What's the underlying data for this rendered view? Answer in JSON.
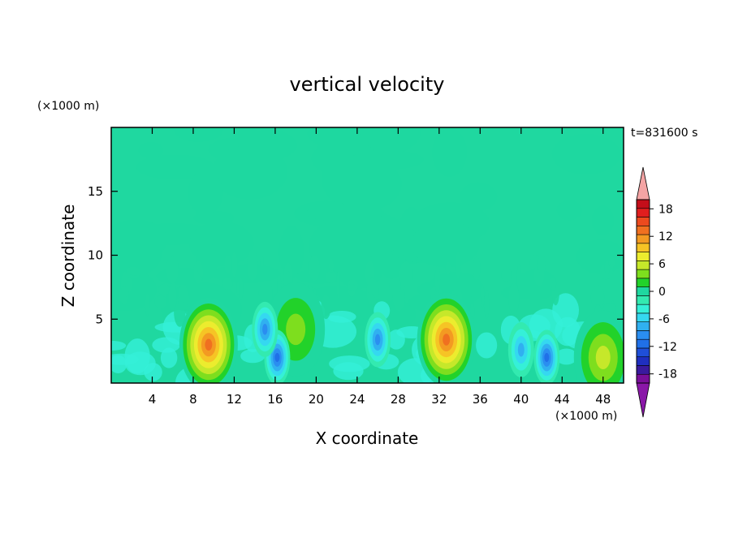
{
  "chart_data": {
    "type": "heatmap",
    "title": "vertical velocity",
    "xlabel": "X coordinate",
    "ylabel": "Z coordinate",
    "x_unit": "(×1000 m)",
    "y_unit": "(×1000 m)",
    "time_label": "t=831600 s",
    "xlim": [
      0,
      50
    ],
    "ylim": [
      0,
      20
    ],
    "x_ticks": [
      4,
      8,
      12,
      16,
      20,
      24,
      28,
      32,
      36,
      40,
      44,
      48
    ],
    "y_ticks": [
      5,
      10,
      15
    ],
    "colorbar": {
      "levels": [
        -20,
        -18,
        -16,
        -14,
        -12,
        -10,
        -8,
        -6,
        -4,
        -2,
        0,
        2,
        4,
        6,
        8,
        10,
        12,
        14,
        16,
        18,
        20
      ],
      "tick_labels": [
        18,
        12,
        6,
        0,
        -6,
        -12,
        -18
      ],
      "colors": [
        "#7a0f9a",
        "#3a1a9e",
        "#1f2fc0",
        "#1f4fd8",
        "#2070e8",
        "#2a8ef0",
        "#30b0f0",
        "#35d8f0",
        "#35f0d8",
        "#33eab0",
        "#1fd8a0",
        "#22d22a",
        "#7ede1e",
        "#c6e82a",
        "#ecec2e",
        "#f6c425",
        "#f39a22",
        "#f07020",
        "#ec4a1e",
        "#e01e1e",
        "#c40e1a"
      ],
      "under_color": "#8a17a8",
      "over_color": "#f4a4a4"
    },
    "features": [
      {
        "x": 9.5,
        "z": 3.0,
        "value": 16,
        "sign": "updraft"
      },
      {
        "x": 32.7,
        "z": 3.4,
        "value": 16,
        "sign": "updraft"
      },
      {
        "x": 48.0,
        "z": 2.0,
        "value": 8,
        "sign": "updraft"
      },
      {
        "x": 18.0,
        "z": 4.2,
        "value": 6,
        "sign": "updraft"
      },
      {
        "x": 16.2,
        "z": 2.0,
        "value": -12,
        "sign": "downdraft"
      },
      {
        "x": 15.0,
        "z": 4.2,
        "value": -10,
        "sign": "downdraft"
      },
      {
        "x": 26.0,
        "z": 3.4,
        "value": -10,
        "sign": "downdraft"
      },
      {
        "x": 42.5,
        "z": 2.0,
        "value": -12,
        "sign": "downdraft"
      },
      {
        "x": 40.0,
        "z": 2.6,
        "value": -8,
        "sign": "downdraft"
      }
    ]
  }
}
